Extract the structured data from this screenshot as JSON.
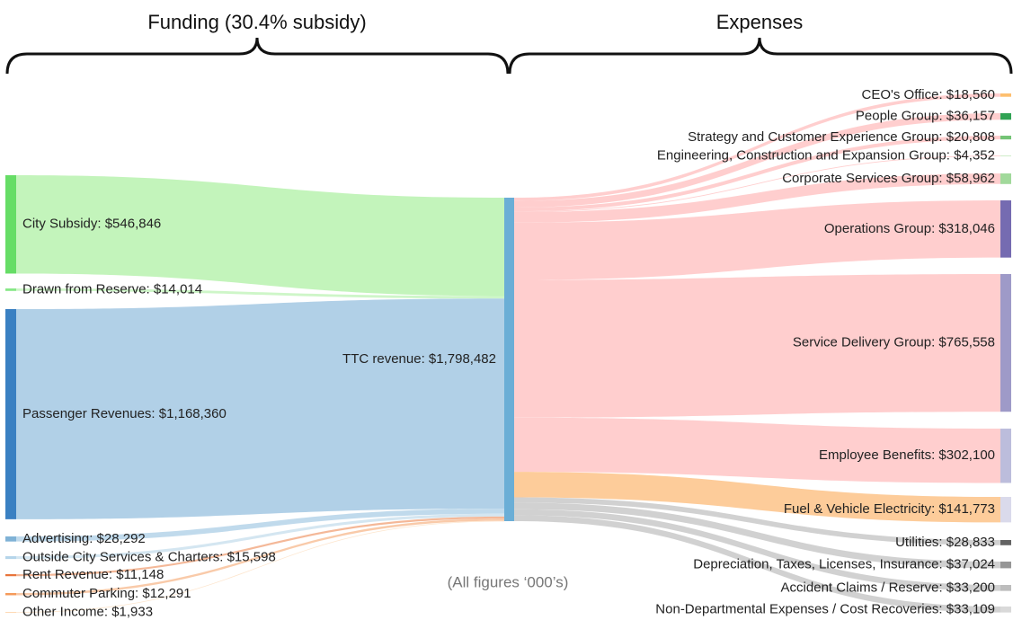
{
  "chart_data": {
    "type": "sankey",
    "headers": [
      "Funding (30.4% subsidy)",
      "Expenses"
    ],
    "note": "(All figures ‘000’s)",
    "hub": {
      "value": 1798482,
      "value_label": "TTC revenue: $1,798,482",
      "color": "#6baed6"
    },
    "sources": {
      "values": [
        546846,
        14014,
        1168360,
        28292,
        15598,
        11148,
        12291,
        1933
      ],
      "value_labels": [
        "City Subsidy: $546,846",
        "Drawn from Reserve: $14,014",
        "Passenger Revenues: $1,168,360",
        "Advertising: $28,292",
        "Outside City Services & Charters: $15,598",
        "Rent Revenue: $11,148",
        "Commuter Parking: $12,291",
        "Other Income: $1,933"
      ],
      "colors": [
        "#66dd66",
        "#88e888",
        "#3a80c2",
        "#7fb2d6",
        "#b5d5ea",
        "#e8743b",
        "#f59a5a",
        "#fdd0a2"
      ],
      "link_colors": [
        "#bdf3b4",
        "#c9f5c2",
        "#a8cbe4",
        "#b9d6ea",
        "#cfe3f0",
        "#f3b08d",
        "#f8c4a0",
        "#fde2c8"
      ]
    },
    "targets": {
      "values": [
        18560,
        36157,
        20808,
        4352,
        58962,
        318046,
        765558,
        302100,
        141773,
        28833,
        37024,
        33200,
        33109
      ],
      "value_labels": [
        "CEO's Office: $18,560",
        "People Group: $36,157",
        "Strategy and Customer Experience Group: $20,808",
        "Engineering, Construction and Expansion Group: $4,352",
        "Corporate Services Group: $58,962",
        "Operations Group: $318,046",
        "Service Delivery Group: $765,558",
        "Employee Benefits: $302,100",
        "Fuel & Vehicle Electricity: $141,773",
        "Utilities: $28,833",
        "Depreciation, Taxes, Licenses, Insurance: $37,024",
        "Accident Claims / Reserve: $33,200",
        "Non-Departmental Expenses / Cost Recoveries: $33,109"
      ],
      "colors": [
        "#fdbf6f",
        "#31a354",
        "#74c476",
        "#c7e9c0",
        "#a1d99b",
        "#756bb1",
        "#9e9ac8",
        "#bcbddc",
        "#dadaeb",
        "#636363",
        "#969696",
        "#bdbdbd",
        "#d9d9d9"
      ],
      "link_colors": [
        "#ffc9c9",
        "#ffc9c9",
        "#ffc9c9",
        "#ffc9c9",
        "#ffc9c9",
        "#ffc9c9",
        "#ffc9c9",
        "#ffc9c9",
        "#fdc68f",
        "#cccccc",
        "#cccccc",
        "#cccccc",
        "#cccccc"
      ]
    }
  }
}
